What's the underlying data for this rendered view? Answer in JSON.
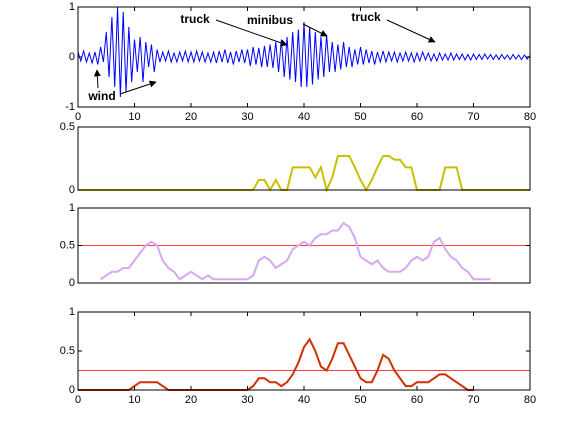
{
  "chart_data": [
    {
      "type": "line",
      "xlim": [
        0,
        80
      ],
      "ylim": [
        -1,
        1
      ],
      "yticks": [
        -1,
        0,
        1
      ],
      "xticks": [
        0,
        10,
        20,
        30,
        40,
        50,
        60,
        70,
        80
      ],
      "annotations": [
        "truck",
        "minibus",
        "truck",
        "wind"
      ],
      "series": [
        {
          "color": "#0000ff",
          "x": [
            0,
            0.5,
            1,
            1.5,
            2,
            2.5,
            3,
            3.5,
            4,
            4.5,
            5,
            5.5,
            6,
            6.5,
            7,
            7.5,
            8,
            8.5,
            9,
            9.5,
            10,
            10.5,
            11,
            11.5,
            12,
            12.5,
            13,
            13.5,
            14,
            14.5,
            15,
            15.5,
            16,
            16.5,
            17,
            17.5,
            18,
            18.5,
            19,
            19.5,
            20,
            20.5,
            21,
            21.5,
            22,
            22.5,
            23,
            23.5,
            24,
            24.5,
            25,
            25.5,
            26,
            26.5,
            27,
            27.5,
            28,
            28.5,
            29,
            29.5,
            30,
            30.5,
            31,
            31.5,
            32,
            32.5,
            33,
            33.5,
            34,
            34.5,
            35,
            35.5,
            36,
            36.5,
            37,
            37.5,
            38,
            38.5,
            39,
            39.5,
            40,
            40.5,
            41,
            41.5,
            42,
            42.5,
            43,
            43.5,
            44,
            44.5,
            45,
            45.5,
            46,
            46.5,
            47,
            47.5,
            48,
            48.5,
            49,
            49.5,
            50,
            50.5,
            51,
            51.5,
            52,
            52.5,
            53,
            53.5,
            54,
            54.5,
            55,
            55.5,
            56,
            56.5,
            57,
            57.5,
            58,
            58.5,
            59,
            59.5,
            60,
            60.5,
            61,
            61.5,
            62,
            62.5,
            63,
            63.5,
            64,
            64.5,
            65,
            65.5,
            66,
            66.5,
            67,
            67.5,
            68,
            68.5,
            69,
            69.5,
            70,
            70.5,
            71,
            71.5,
            72,
            72.5,
            73,
            73.5,
            74,
            74.5,
            75,
            75.5,
            76,
            76.5,
            77,
            77.5,
            78,
            78.5,
            79,
            79.5,
            80
          ],
          "values": [
            0.1,
            -0.08,
            0.12,
            -0.1,
            0.08,
            -0.12,
            0.1,
            -0.15,
            0.2,
            -0.1,
            0.5,
            -0.4,
            0.8,
            -0.6,
            1,
            -0.8,
            0.9,
            -0.7,
            0.6,
            -0.5,
            0.35,
            -0.3,
            0.4,
            -0.5,
            0.3,
            -0.2,
            0.25,
            -0.3,
            0.15,
            -0.1,
            0.1,
            -0.08,
            0.12,
            -0.1,
            0.08,
            -0.1,
            0.1,
            -0.08,
            0.12,
            -0.1,
            0.1,
            -0.1,
            0.12,
            -0.08,
            0.1,
            -0.1,
            0.08,
            -0.1,
            0.1,
            -0.12,
            0.12,
            -0.1,
            0.15,
            -0.12,
            0.1,
            -0.15,
            0.12,
            -0.1,
            0.15,
            -0.12,
            0.15,
            -0.18,
            0.2,
            -0.15,
            0.18,
            -0.2,
            0.22,
            -0.2,
            0.25,
            -0.22,
            0.3,
            -0.3,
            0.35,
            -0.4,
            0.4,
            -0.45,
            0.5,
            -0.5,
            0.55,
            -0.6,
            0.7,
            -0.6,
            0.6,
            -0.55,
            0.5,
            -0.45,
            0.4,
            -0.4,
            0.45,
            -0.3,
            0.3,
            -0.3,
            0.25,
            -0.25,
            0.3,
            -0.2,
            0.2,
            -0.2,
            0.15,
            -0.15,
            0.2,
            -0.15,
            0.15,
            -0.12,
            0.12,
            -0.15,
            0.1,
            -0.1,
            0.12,
            -0.1,
            0.1,
            -0.08,
            0.1,
            -0.1,
            0.08,
            -0.08,
            0.1,
            -0.08,
            0.08,
            -0.1,
            0.08,
            -0.08,
            0.1,
            -0.06,
            0.08,
            -0.08,
            0.06,
            -0.08,
            0.08,
            -0.06,
            0.06,
            -0.06,
            0.08,
            -0.06,
            0.06,
            -0.05,
            0.06,
            -0.06,
            0.05,
            -0.06,
            0.06,
            -0.05,
            0.05,
            -0.05,
            0.06,
            -0.04,
            0.05,
            -0.05,
            0.04,
            -0.05,
            0.05,
            -0.04,
            0.04,
            -0.05,
            0.05,
            -0.04,
            0.04,
            -0.05,
            0.04,
            -0.04,
            0.03
          ]
        }
      ]
    },
    {
      "type": "line",
      "xlim": [
        0,
        80
      ],
      "ylim": [
        0,
        0.5
      ],
      "yticks": [
        0,
        0.5
      ],
      "series": [
        {
          "color": "#c8c000",
          "x": [
            0,
            1,
            2,
            3,
            4,
            5,
            6,
            7,
            8,
            9,
            10,
            11,
            12,
            13,
            14,
            15,
            16,
            17,
            18,
            19,
            20,
            21,
            22,
            23,
            24,
            25,
            26,
            27,
            28,
            29,
            30,
            31,
            32,
            33,
            34,
            35,
            36,
            37,
            38,
            39,
            40,
            41,
            42,
            43,
            44,
            45,
            46,
            47,
            48,
            49,
            50,
            51,
            52,
            53,
            54,
            55,
            56,
            57,
            58,
            59,
            60,
            61,
            62,
            63,
            64,
            65,
            66,
            67,
            68,
            69,
            70,
            71,
            72,
            73,
            74,
            75,
            76,
            77,
            78,
            79,
            80
          ],
          "values": [
            0,
            0,
            0,
            0,
            0,
            0,
            0,
            0,
            0,
            0,
            0,
            0,
            0,
            0,
            0,
            0,
            0,
            0,
            0,
            0,
            0,
            0,
            0,
            0,
            0,
            0,
            0,
            0,
            0,
            0,
            0,
            0,
            0.08,
            0.08,
            0,
            0.08,
            0,
            0,
            0.18,
            0.18,
            0.18,
            0.18,
            0.1,
            0.18,
            0,
            0.1,
            0.27,
            0.27,
            0.27,
            0.18,
            0.08,
            0,
            0.08,
            0.18,
            0.27,
            0.27,
            0.24,
            0.24,
            0.18,
            0.18,
            0,
            0,
            0,
            0,
            0,
            0.18,
            0.18,
            0.18,
            0,
            0,
            0,
            0,
            0,
            0,
            0,
            0,
            0,
            0,
            0,
            0,
            0
          ]
        }
      ]
    },
    {
      "type": "line",
      "xlim": [
        0,
        80
      ],
      "ylim": [
        0,
        1
      ],
      "yticks": [
        0,
        0.5,
        1
      ],
      "threshold": 0.5,
      "threshold_color": "#ff4040",
      "series": [
        {
          "color": "#d8a8f0",
          "x": [
            4,
            5,
            6,
            7,
            8,
            9,
            10,
            11,
            12,
            13,
            14,
            15,
            16,
            17,
            18,
            19,
            20,
            21,
            22,
            23,
            24,
            25,
            26,
            27,
            28,
            29,
            30,
            31,
            32,
            33,
            34,
            35,
            36,
            37,
            38,
            39,
            40,
            41,
            42,
            43,
            44,
            45,
            46,
            47,
            48,
            49,
            50,
            51,
            52,
            53,
            54,
            55,
            56,
            57,
            58,
            59,
            60,
            61,
            62,
            63,
            64,
            65,
            66,
            67,
            68,
            69,
            70,
            71,
            72,
            73
          ],
          "values": [
            0.05,
            0.1,
            0.15,
            0.15,
            0.2,
            0.2,
            0.3,
            0.4,
            0.5,
            0.55,
            0.5,
            0.3,
            0.2,
            0.15,
            0.05,
            0.1,
            0.15,
            0.1,
            0.05,
            0.1,
            0.05,
            0.05,
            0.05,
            0.05,
            0.05,
            0.05,
            0.05,
            0.1,
            0.3,
            0.35,
            0.3,
            0.2,
            0.25,
            0.3,
            0.45,
            0.5,
            0.55,
            0.5,
            0.6,
            0.65,
            0.65,
            0.7,
            0.7,
            0.8,
            0.75,
            0.6,
            0.35,
            0.3,
            0.25,
            0.3,
            0.2,
            0.15,
            0.15,
            0.15,
            0.2,
            0.3,
            0.35,
            0.3,
            0.35,
            0.55,
            0.6,
            0.45,
            0.35,
            0.3,
            0.2,
            0.15,
            0.05,
            0.05,
            0.05,
            0.05
          ]
        }
      ]
    },
    {
      "type": "line",
      "xlim": [
        0,
        80
      ],
      "ylim": [
        0,
        1
      ],
      "yticks": [
        0,
        0.5,
        1
      ],
      "xticks": [
        0,
        10,
        20,
        30,
        40,
        50,
        60,
        70,
        80
      ],
      "threshold": 0.25,
      "threshold_color": "#ff4040",
      "series": [
        {
          "color": "#d03000",
          "x": [
            0,
            1,
            2,
            3,
            4,
            5,
            6,
            7,
            8,
            9,
            10,
            11,
            12,
            13,
            14,
            15,
            16,
            17,
            18,
            19,
            20,
            21,
            22,
            23,
            24,
            25,
            26,
            27,
            28,
            29,
            30,
            31,
            32,
            33,
            34,
            35,
            36,
            37,
            38,
            39,
            40,
            41,
            42,
            43,
            44,
            45,
            46,
            47,
            48,
            49,
            50,
            51,
            52,
            53,
            54,
            55,
            56,
            57,
            58,
            59,
            60,
            61,
            62,
            63,
            64,
            65,
            66,
            67,
            68,
            69,
            70
          ],
          "values": [
            0,
            0,
            0,
            0,
            0,
            0,
            0,
            0,
            0,
            0,
            0.05,
            0.1,
            0.1,
            0.1,
            0.1,
            0.05,
            0,
            0,
            0,
            0,
            0,
            0,
            0,
            0,
            0,
            0,
            0,
            0,
            0,
            0,
            0,
            0.05,
            0.15,
            0.15,
            0.1,
            0.1,
            0.05,
            0.1,
            0.2,
            0.35,
            0.55,
            0.65,
            0.5,
            0.3,
            0.25,
            0.4,
            0.6,
            0.6,
            0.45,
            0.3,
            0.15,
            0.1,
            0.1,
            0.25,
            0.45,
            0.4,
            0.25,
            0.15,
            0.05,
            0.05,
            0.1,
            0.1,
            0.1,
            0.15,
            0.2,
            0.2,
            0.15,
            0.1,
            0.05,
            0,
            0
          ]
        }
      ]
    }
  ]
}
